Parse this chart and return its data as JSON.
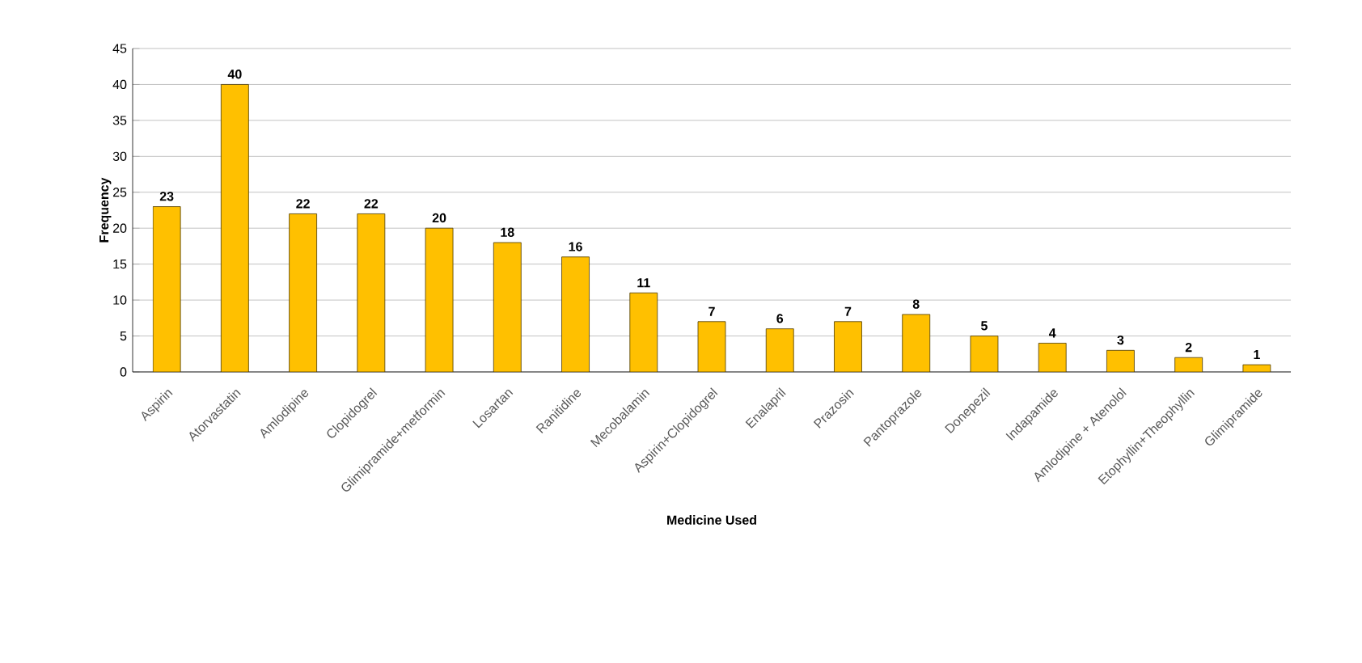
{
  "chart_data": {
    "type": "bar",
    "xlabel": "Medicine Used",
    "ylabel": "Frequency",
    "categories": [
      "Aspirin",
      "Atorvastatin",
      "Amlodipine",
      "Clopidogrel",
      "Glimipramide+metformin",
      "Losartan",
      "Ranitidine",
      "Mecobalamin",
      "Aspirin+Clopidogrel",
      "Enalapril",
      "Prazosin",
      "Pantoprazole",
      "Donepezil",
      "Indapamide",
      "Amlodipine + Atenolol",
      "Etophyllin+Theophyllin",
      "Glimipramide"
    ],
    "values": [
      23,
      40,
      22,
      22,
      20,
      18,
      16,
      11,
      7,
      6,
      7,
      8,
      5,
      4,
      3,
      2,
      1
    ],
    "color": "#ffc000",
    "ylim": [
      0,
      45
    ],
    "yticks": [
      0,
      5,
      10,
      15,
      20,
      25,
      30,
      35,
      40,
      45
    ],
    "grid": "y",
    "data_labels": true
  }
}
